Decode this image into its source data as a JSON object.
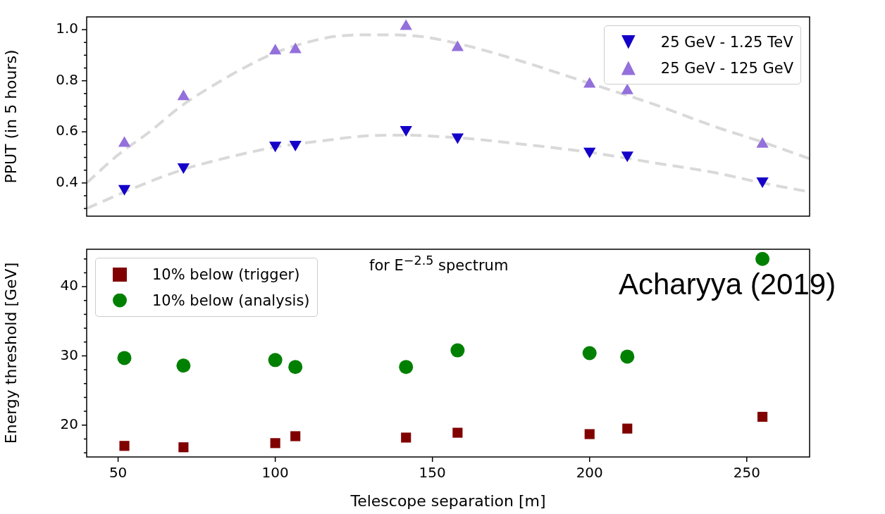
{
  "chart_data": [
    {
      "type": "scatter",
      "ylabel": "PPUT (in 5 hours)",
      "xlim": [
        40,
        270
      ],
      "ylim": [
        0.27,
        1.05
      ],
      "yticks": [
        {
          "value": 0.3,
          "label": null
        },
        {
          "value": 0.35,
          "label": null
        },
        {
          "value": 0.4,
          "label": "0.4"
        },
        {
          "value": 0.45,
          "label": null
        },
        {
          "value": 0.5,
          "label": null
        },
        {
          "value": 0.55,
          "label": null
        },
        {
          "value": 0.6,
          "label": "0.6"
        },
        {
          "value": 0.65,
          "label": null
        },
        {
          "value": 0.7,
          "label": null
        },
        {
          "value": 0.75,
          "label": null
        },
        {
          "value": 0.8,
          "label": "0.8"
        },
        {
          "value": 0.85,
          "label": null
        },
        {
          "value": 0.9,
          "label": null
        },
        {
          "value": 0.95,
          "label": null
        },
        {
          "value": 1.0,
          "label": "1.0"
        }
      ],
      "tick_labels": "y",
      "legend": "top right",
      "series": [
        {
          "name": "25 GeV - 1.25 TeV",
          "color": "#1400c8",
          "marker": "triangle_down",
          "x": [
            52,
            70.8,
            100,
            106.4,
            141.6,
            158,
            200,
            212,
            255
          ],
          "values": [
            0.378,
            0.463,
            0.548,
            0.551,
            0.609,
            0.58,
            0.524,
            0.509,
            0.408
          ]
        },
        {
          "name": "25 GeV - 125 GeV",
          "color": "#9370db",
          "marker": "triangle",
          "x": [
            52,
            70.8,
            100,
            106.4,
            141.6,
            158,
            200,
            212,
            255
          ],
          "values": [
            0.555,
            0.738,
            0.917,
            0.922,
            1.013,
            0.93,
            0.787,
            0.761,
            0.552
          ]
        },
        {
          "type": "line",
          "color": "#d9d9d9",
          "line_style": "dashed",
          "marker": "none",
          "x": [
            40,
            50,
            60,
            70,
            80,
            90,
            100,
            110,
            120,
            132,
            145,
            160,
            180,
            200,
            220,
            240,
            255,
            270
          ],
          "values": [
            0.4,
            0.51,
            0.6,
            0.7,
            0.78,
            0.85,
            0.91,
            0.95,
            0.975,
            0.98,
            0.975,
            0.94,
            0.87,
            0.79,
            0.71,
            0.62,
            0.56,
            0.495
          ]
        },
        {
          "type": "line",
          "color": "#d9d9d9",
          "line_style": "dashed",
          "marker": "none",
          "x": [
            40,
            55,
            70,
            85,
            100,
            115,
            130,
            140,
            160,
            180,
            200,
            220,
            240,
            255,
            270
          ],
          "values": [
            0.3,
            0.38,
            0.45,
            0.5,
            0.54,
            0.565,
            0.585,
            0.587,
            0.575,
            0.55,
            0.52,
            0.48,
            0.44,
            0.4,
            0.365
          ]
        }
      ]
    },
    {
      "type": "scatter",
      "xlabel": "Telescope separation [m]",
      "ylabel": "Energy threshold [GeV]",
      "xlim": [
        40,
        270
      ],
      "xticks": [
        50,
        100,
        150,
        200,
        250
      ],
      "ylim": [
        15.4,
        45.4
      ],
      "yticks": [
        {
          "value": 16,
          "label": null
        },
        {
          "value": 18,
          "label": null
        },
        20,
        {
          "value": 22,
          "label": null
        },
        {
          "value": 24,
          "label": null
        },
        {
          "value": 26,
          "label": null
        },
        {
          "value": 28,
          "label": null
        },
        30,
        {
          "value": 32,
          "label": null
        },
        {
          "value": 34,
          "label": null
        },
        {
          "value": 36,
          "label": null
        },
        {
          "value": 38,
          "label": null
        },
        40,
        {
          "value": 42,
          "label": null
        },
        {
          "value": 44,
          "label": null
        }
      ],
      "legend": "top left",
      "annotations": [
        "for E$^{−2.5}$ spectrum",
        "Acharyya (2019)"
      ],
      "series": [
        {
          "name": "10% below (trigger)",
          "color": "#800000",
          "marker": "square",
          "x": [
            52,
            70.8,
            100,
            106.4,
            141.6,
            158,
            200,
            212,
            255
          ],
          "values": [
            17.0,
            16.8,
            17.4,
            18.4,
            18.2,
            18.9,
            18.7,
            19.5,
            21.2
          ]
        },
        {
          "name": "10% below (analysis)",
          "color": "#008000",
          "marker": "circle",
          "x": [
            52,
            70.8,
            100,
            106.4,
            141.6,
            158,
            200,
            212,
            255
          ],
          "values": [
            29.7,
            28.6,
            29.4,
            28.4,
            28.4,
            30.8,
            30.4,
            29.9,
            44.0
          ]
        }
      ]
    }
  ]
}
